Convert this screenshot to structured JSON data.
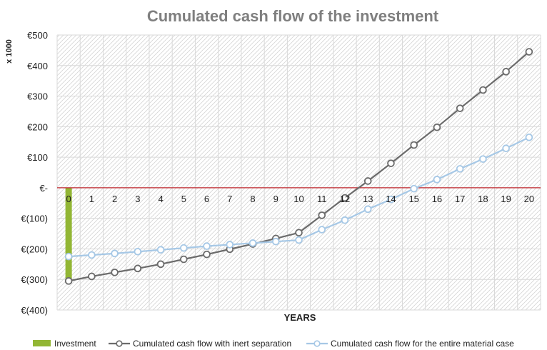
{
  "chart_data": {
    "type": "line",
    "title": "Cumulated cash flow of the investment",
    "xlabel": "YEARS",
    "ylabel": "x 1000",
    "ylim": [
      -400,
      500
    ],
    "yticks": [
      500,
      400,
      300,
      200,
      100,
      0,
      -100,
      -200,
      -300,
      -400
    ],
    "ytick_labels": [
      "€500",
      "€400",
      "€300",
      "€200",
      "€100",
      "€-",
      "€(100)",
      "€(200)",
      "€(300)",
      "€(400)"
    ],
    "x": [
      0,
      1,
      2,
      3,
      4,
      5,
      6,
      7,
      8,
      9,
      10,
      11,
      12,
      13,
      14,
      15,
      16,
      17,
      18,
      19,
      20
    ],
    "x_labels": [
      "0",
      "1",
      "2",
      "3",
      "4",
      "5",
      "6",
      "7",
      "8",
      "9",
      "10",
      "11",
      "12",
      "13",
      "14",
      "15",
      "16",
      "17",
      "18",
      "19",
      "20"
    ],
    "grid": true,
    "legend_position": "bottom",
    "series": [
      {
        "name": "Investment",
        "kind": "bar",
        "color": "#92b634",
        "values": [
          -300,
          null,
          null,
          null,
          null,
          null,
          null,
          null,
          null,
          null,
          null,
          null,
          null,
          null,
          null,
          null,
          null,
          null,
          null,
          null,
          null
        ]
      },
      {
        "name": "Cumulated cash flow with inert separation",
        "kind": "line",
        "color": "#6b6b6b",
        "values": [
          -305,
          -290,
          -277,
          -264,
          -250,
          -234,
          -218,
          -201,
          -184,
          -166,
          -147,
          -90,
          -33,
          22,
          80,
          140,
          198,
          260,
          320,
          380,
          445
        ]
      },
      {
        "name": "Cumulated cash flow for the entire material case",
        "kind": "line",
        "color": "#a6c8e6",
        "values": [
          -225,
          -220,
          -215,
          -209,
          -203,
          -197,
          -191,
          -186,
          -181,
          -176,
          -171,
          -137,
          -106,
          -70,
          -38,
          -3,
          27,
          62,
          94,
          129,
          165
        ]
      }
    ]
  }
}
